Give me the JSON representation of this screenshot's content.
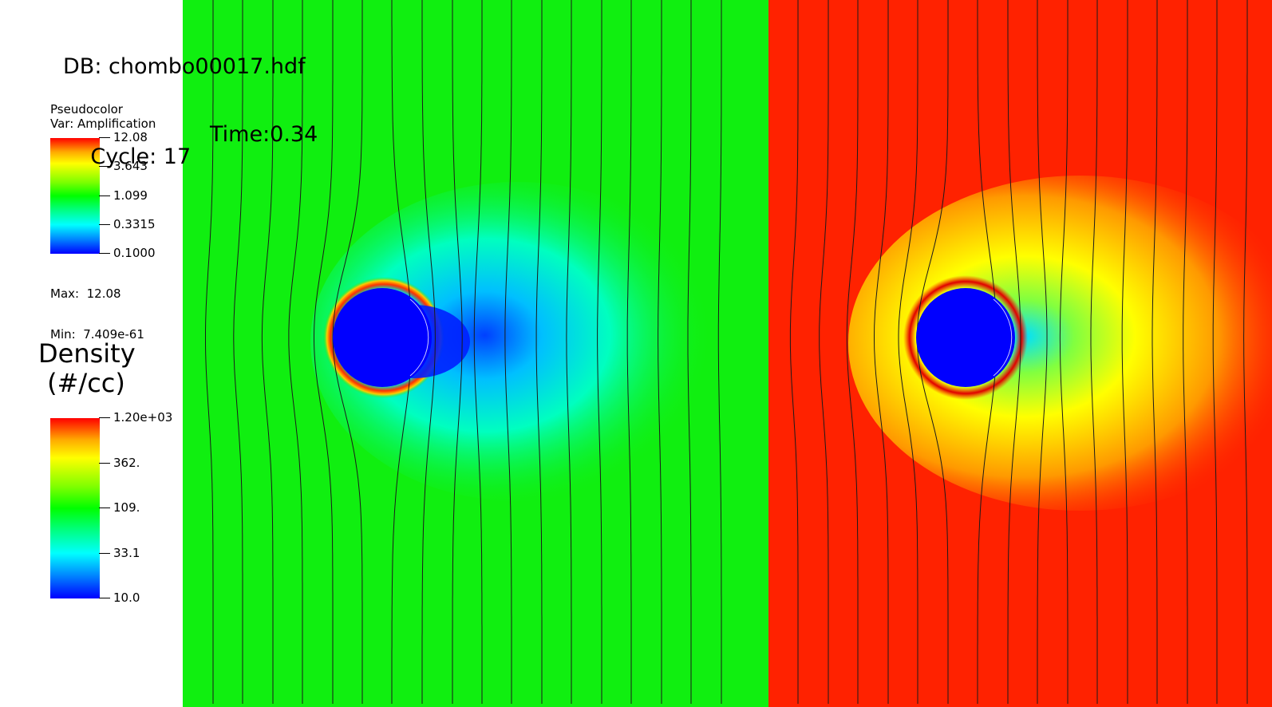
{
  "header": {
    "db_line": "DB: chombo00017.hdf",
    "cycle_line": "Cycle: 17",
    "time_line": "Time:0.34"
  },
  "amplification_legend": {
    "type_label": "Pseudocolor",
    "var_label": "Var: Amplification",
    "ticks": [
      "12.08",
      "3.643",
      "1.099",
      "0.3315",
      "0.1000"
    ],
    "max_label": "Max:  12.08",
    "min_label": "Min:  7.409e-61"
  },
  "density_legend": {
    "title_line1": "Density",
    "title_line2": "(#/cc)",
    "ticks": [
      "1.20e+03",
      "362.",
      "109.",
      "33.1",
      "10.0"
    ]
  },
  "colors": {
    "left_background": "#10ef10",
    "right_background": "#ff2200",
    "obstacle": "#0000ff"
  }
}
